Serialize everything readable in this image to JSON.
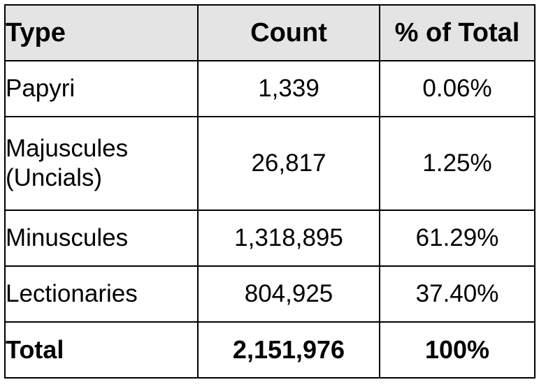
{
  "table": {
    "headers": [
      "Type",
      "Count",
      "% of Total"
    ],
    "rows": [
      {
        "type_lines": [
          "Papyri"
        ],
        "count": "1,339",
        "percent": "0.06%"
      },
      {
        "type_lines": [
          "Majuscules",
          "(Uncials)"
        ],
        "count": "26,817",
        "percent": "1.25%"
      },
      {
        "type_lines": [
          "Minuscules"
        ],
        "count": "1,318,895",
        "percent": "61.29%"
      },
      {
        "type_lines": [
          "Lectionaries"
        ],
        "count": "804,925",
        "percent": "37.40%"
      }
    ],
    "total": {
      "label": "Total",
      "count": "2,151,976",
      "percent": "100%"
    },
    "colors": {
      "header_background": "#e4e4e4",
      "border": "#000000",
      "text": "#000000"
    }
  }
}
